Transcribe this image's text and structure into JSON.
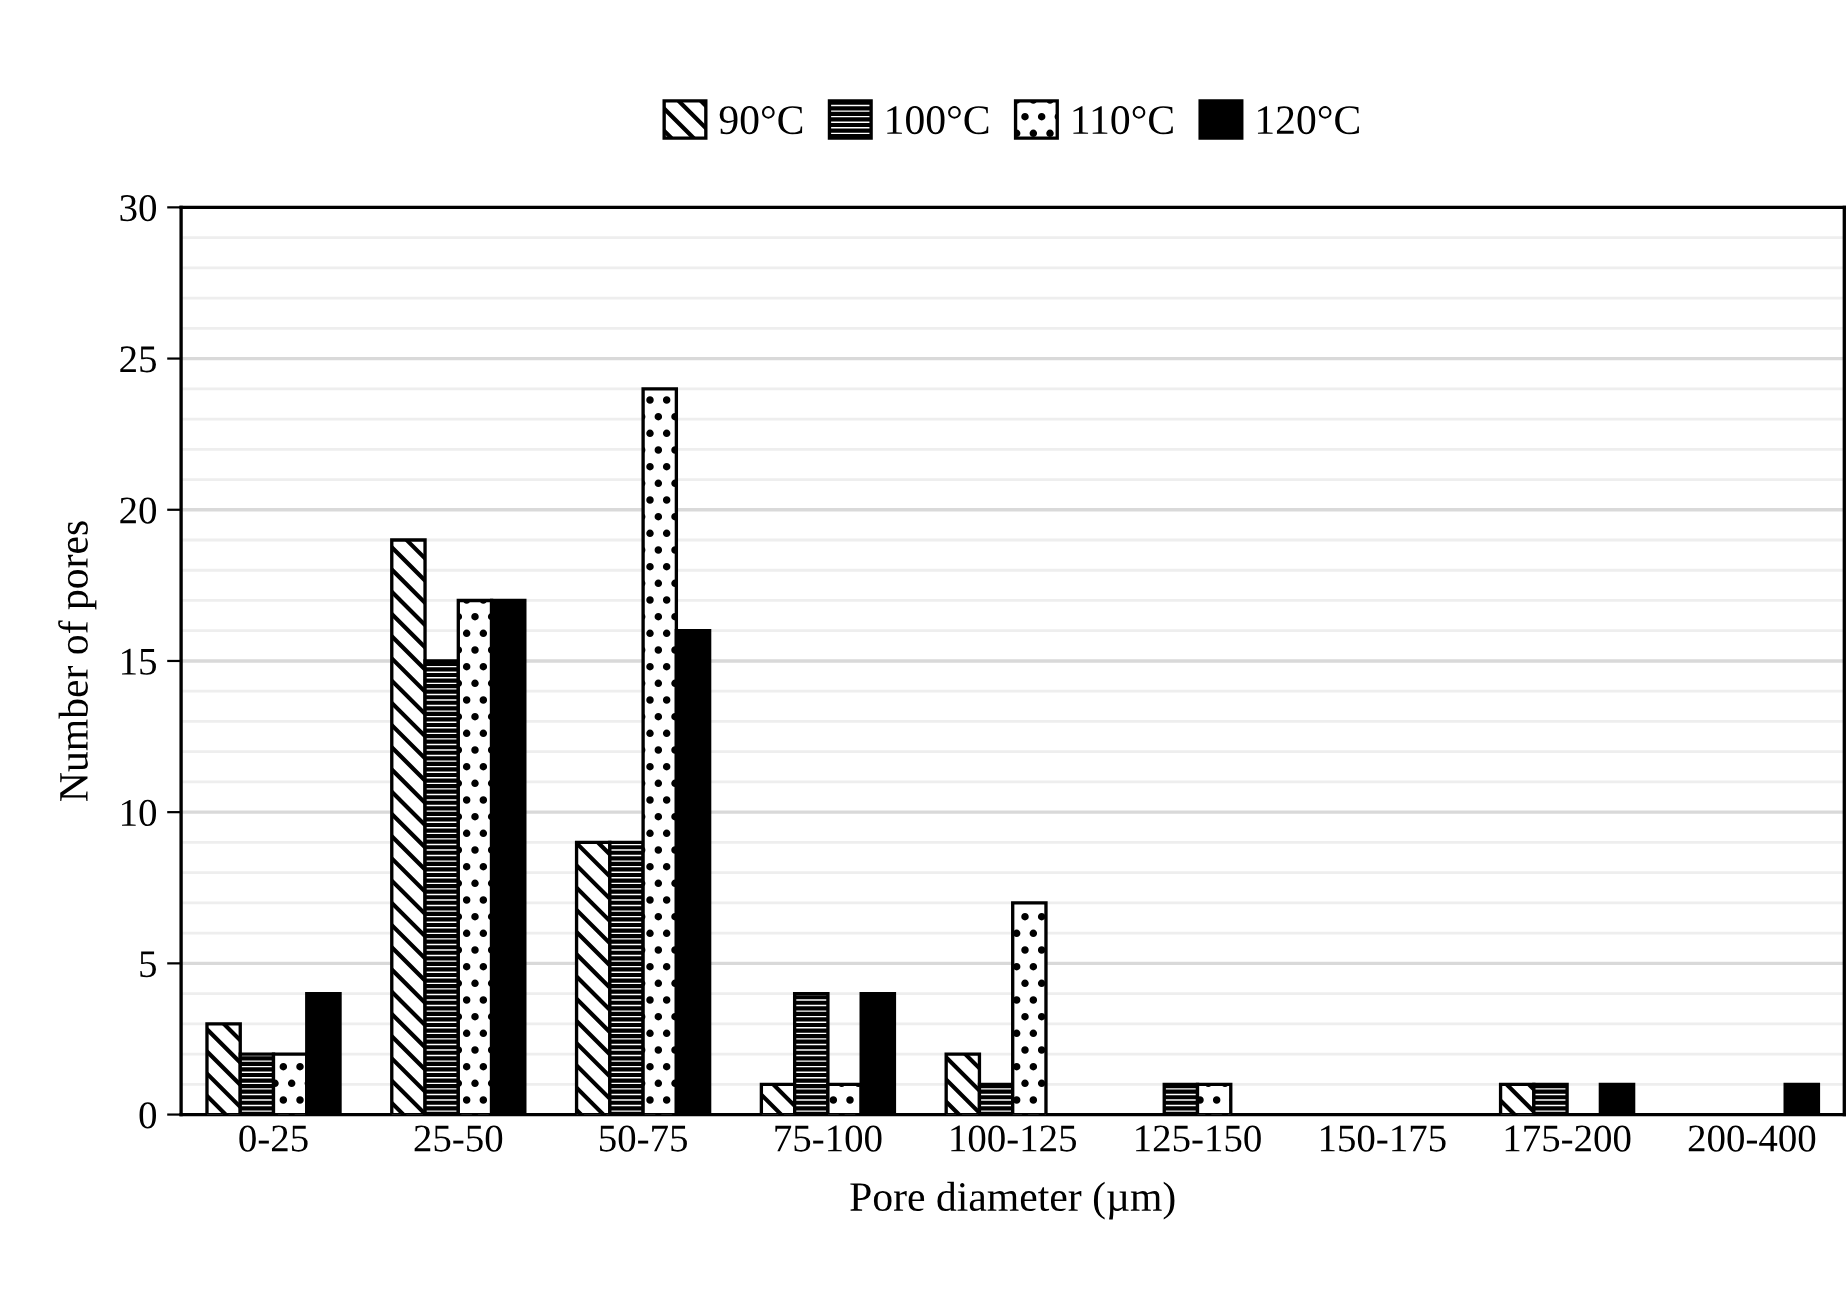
{
  "chart_data": {
    "type": "bar",
    "xlabel": "Pore diameter (µm)",
    "ylabel": "Number of pores",
    "categories": [
      "0-25",
      "25-50",
      "50-75",
      "75-100",
      "100-125",
      "125-150",
      "150-175",
      "175-200",
      "200-400"
    ],
    "series": [
      {
        "name": "90°C",
        "color": "#000000",
        "values": [
          3,
          19,
          9,
          1,
          2,
          0,
          0,
          1,
          0
        ]
      },
      {
        "name": "100°C",
        "color": "#000000",
        "values": [
          2,
          15,
          9,
          4,
          1,
          1,
          0,
          1,
          0
        ]
      },
      {
        "name": "110°C",
        "color": "#000000",
        "values": [
          2,
          17,
          24,
          1,
          7,
          1,
          0,
          0,
          0
        ]
      },
      {
        "name": "120°C",
        "color": "#000000",
        "values": [
          4,
          17,
          16,
          4,
          0,
          0,
          0,
          1,
          1
        ]
      }
    ],
    "ylim": [
      0,
      30
    ],
    "yticks": [
      0,
      5,
      10,
      15,
      20,
      25,
      30
    ],
    "grid": "y",
    "legend": "top"
  }
}
